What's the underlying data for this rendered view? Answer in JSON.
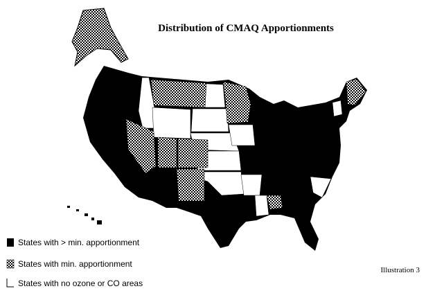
{
  "title": "Distribution of CMAQ Apportionments",
  "legend": [
    {
      "label": "States with > min. apportionment"
    },
    {
      "label": "States with min. apportionment"
    },
    {
      "label": "States with no ozone or CO areas"
    }
  ],
  "caption": "Illustration 3"
}
